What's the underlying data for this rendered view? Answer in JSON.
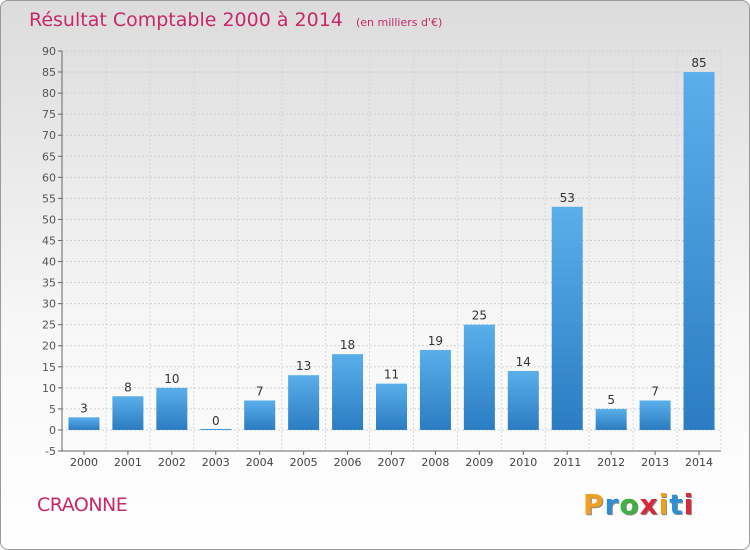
{
  "header": {
    "title": "Résultat Comptable 2000 à 2014",
    "subtitle": "(en milliers d'€)"
  },
  "location": "CRAONNE",
  "logo": {
    "letters": [
      "P",
      "r",
      "o",
      "x",
      "i",
      "t",
      "i"
    ],
    "colors": [
      "#f0a020",
      "#2d8ed8",
      "#40b040",
      "#d8283c",
      "#f0a020",
      "#2d8ed8",
      "#d8283c"
    ]
  },
  "chart_data": {
    "type": "bar",
    "title": "Résultat Comptable 2000 à 2014",
    "xlabel": "",
    "ylabel": "",
    "categories": [
      "2000",
      "2001",
      "2002",
      "2003",
      "2004",
      "2005",
      "2006",
      "2007",
      "2008",
      "2009",
      "2010",
      "2011",
      "2012",
      "2013",
      "2014"
    ],
    "values": [
      3,
      8,
      10,
      0,
      7,
      13,
      18,
      11,
      19,
      25,
      14,
      53,
      5,
      7,
      85
    ],
    "ylim": [
      -5,
      90
    ],
    "yticks": [
      -5,
      0,
      5,
      10,
      15,
      20,
      25,
      30,
      35,
      40,
      45,
      50,
      55,
      60,
      65,
      70,
      75,
      80,
      85,
      90
    ],
    "grid": true,
    "bar_color": "#4a9fe0"
  }
}
